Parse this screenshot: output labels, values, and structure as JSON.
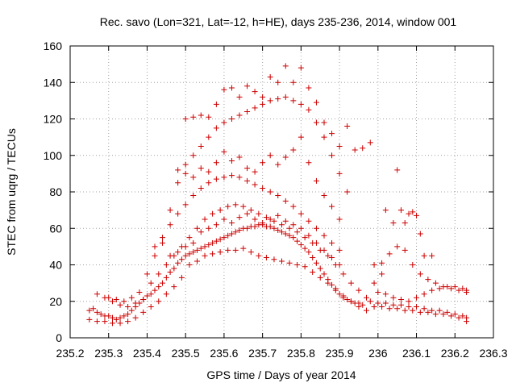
{
  "chart_data": {
    "type": "scatter",
    "title": "Rec. savo (Lon=321, Lat=-12, h=HE), days 235-236, 2014, window 001",
    "xlabel": "GPS time / Days of year 2014",
    "ylabel": "STEC from uqrg / TECUs",
    "xlim": [
      235.2,
      236.3
    ],
    "ylim": [
      0,
      160
    ],
    "xticks": [
      235.2,
      235.3,
      235.4,
      235.5,
      235.6,
      235.7,
      235.8,
      235.9,
      236.0,
      236.1,
      236.2,
      236.3
    ],
    "xtick_labels": [
      "235.2",
      "235.3",
      "235.4",
      "235.5",
      "235.6",
      "235.7",
      "235.8",
      "235.9",
      "236",
      "236.1",
      "236.2",
      "236.3"
    ],
    "yticks": [
      0,
      20,
      40,
      60,
      80,
      100,
      120,
      140,
      160
    ],
    "ytick_labels": [
      "0",
      "20",
      "40",
      "60",
      "80",
      "100",
      "120",
      "140",
      "160"
    ],
    "grid": true,
    "marker": "plus",
    "color": "#cc0000",
    "points": [
      [
        235.25,
        15
      ],
      [
        235.26,
        16
      ],
      [
        235.27,
        14
      ],
      [
        235.28,
        13
      ],
      [
        235.29,
        12
      ],
      [
        235.3,
        12
      ],
      [
        235.31,
        11
      ],
      [
        235.32,
        10
      ],
      [
        235.33,
        11
      ],
      [
        235.34,
        12
      ],
      [
        235.35,
        13
      ],
      [
        235.36,
        15
      ],
      [
        235.37,
        17
      ],
      [
        235.38,
        19
      ],
      [
        235.39,
        21
      ],
      [
        235.4,
        23
      ],
      [
        235.41,
        24
      ],
      [
        235.42,
        26
      ],
      [
        235.43,
        28
      ],
      [
        235.44,
        30
      ],
      [
        235.45,
        33
      ],
      [
        235.46,
        36
      ],
      [
        235.47,
        38
      ],
      [
        235.48,
        41
      ],
      [
        235.49,
        43
      ],
      [
        235.5,
        45
      ],
      [
        235.51,
        46
      ],
      [
        235.52,
        47
      ],
      [
        235.53,
        48
      ],
      [
        235.54,
        49
      ],
      [
        235.55,
        50
      ],
      [
        235.56,
        51
      ],
      [
        235.57,
        52
      ],
      [
        235.58,
        53
      ],
      [
        235.59,
        54
      ],
      [
        235.6,
        55
      ],
      [
        235.61,
        56
      ],
      [
        235.62,
        57
      ],
      [
        235.63,
        58
      ],
      [
        235.64,
        59
      ],
      [
        235.65,
        60
      ],
      [
        235.66,
        60
      ],
      [
        235.67,
        61
      ],
      [
        235.68,
        61
      ],
      [
        235.69,
        62
      ],
      [
        235.7,
        62
      ],
      [
        235.71,
        61
      ],
      [
        235.72,
        61
      ],
      [
        235.73,
        60
      ],
      [
        235.74,
        59
      ],
      [
        235.75,
        58
      ],
      [
        235.76,
        57
      ],
      [
        235.77,
        56
      ],
      [
        235.78,
        55
      ],
      [
        235.79,
        53
      ],
      [
        235.8,
        51
      ],
      [
        235.81,
        49
      ],
      [
        235.82,
        47
      ],
      [
        235.83,
        44
      ],
      [
        235.84,
        41
      ],
      [
        235.85,
        38
      ],
      [
        235.86,
        35
      ],
      [
        235.87,
        32
      ],
      [
        235.88,
        29
      ],
      [
        235.89,
        26
      ],
      [
        235.9,
        24
      ],
      [
        235.91,
        22
      ],
      [
        235.92,
        21
      ],
      [
        235.93,
        20
      ],
      [
        235.94,
        19
      ],
      [
        235.95,
        19
      ],
      [
        235.96,
        18
      ],
      [
        235.25,
        10
      ],
      [
        235.27,
        9
      ],
      [
        235.29,
        9
      ],
      [
        235.31,
        8
      ],
      [
        235.33,
        8
      ],
      [
        235.35,
        9
      ],
      [
        235.37,
        11
      ],
      [
        235.39,
        14
      ],
      [
        235.41,
        17
      ],
      [
        235.43,
        20
      ],
      [
        235.45,
        24
      ],
      [
        235.47,
        28
      ],
      [
        235.49,
        33
      ],
      [
        235.51,
        40
      ],
      [
        235.53,
        42
      ],
      [
        235.55,
        45
      ],
      [
        235.57,
        46
      ],
      [
        235.59,
        47
      ],
      [
        235.61,
        48
      ],
      [
        235.63,
        48
      ],
      [
        235.65,
        49
      ],
      [
        235.67,
        47
      ],
      [
        235.69,
        45
      ],
      [
        235.71,
        44
      ],
      [
        235.73,
        43
      ],
      [
        235.75,
        42
      ],
      [
        235.77,
        41
      ],
      [
        235.79,
        40
      ],
      [
        235.81,
        39
      ],
      [
        235.83,
        36
      ],
      [
        235.85,
        33
      ],
      [
        235.87,
        30
      ],
      [
        235.89,
        27
      ],
      [
        235.91,
        23
      ],
      [
        235.93,
        20
      ],
      [
        235.95,
        17
      ],
      [
        235.97,
        15
      ],
      [
        235.27,
        24
      ],
      [
        235.29,
        22
      ],
      [
        235.31,
        20
      ],
      [
        235.33,
        18
      ],
      [
        235.35,
        17
      ],
      [
        235.37,
        19
      ],
      [
        235.39,
        21
      ],
      [
        235.41,
        30
      ],
      [
        235.43,
        35
      ],
      [
        235.45,
        40
      ],
      [
        235.47,
        45
      ],
      [
        235.49,
        50
      ],
      [
        235.51,
        55
      ],
      [
        235.53,
        60
      ],
      [
        235.55,
        65
      ],
      [
        235.57,
        68
      ],
      [
        235.59,
        70
      ],
      [
        235.61,
        72
      ],
      [
        235.63,
        73
      ],
      [
        235.65,
        72
      ],
      [
        235.67,
        70
      ],
      [
        235.69,
        68
      ],
      [
        235.71,
        66
      ],
      [
        235.73,
        64
      ],
      [
        235.75,
        62
      ],
      [
        235.77,
        60
      ],
      [
        235.79,
        58
      ],
      [
        235.81,
        55
      ],
      [
        235.83,
        52
      ],
      [
        235.85,
        48
      ],
      [
        235.87,
        45
      ],
      [
        235.89,
        40
      ],
      [
        235.91,
        35
      ],
      [
        235.93,
        30
      ],
      [
        235.95,
        26
      ],
      [
        235.97,
        22
      ],
      [
        235.3,
        22
      ],
      [
        235.32,
        21
      ],
      [
        235.34,
        20
      ],
      [
        235.36,
        22
      ],
      [
        235.38,
        25
      ],
      [
        235.4,
        35
      ],
      [
        235.42,
        45
      ],
      [
        235.44,
        55
      ],
      [
        235.46,
        62
      ],
      [
        235.48,
        68
      ],
      [
        235.5,
        73
      ],
      [
        235.52,
        78
      ],
      [
        235.54,
        82
      ],
      [
        235.56,
        85
      ],
      [
        235.58,
        87
      ],
      [
        235.6,
        88
      ],
      [
        235.62,
        89
      ],
      [
        235.64,
        88
      ],
      [
        235.66,
        86
      ],
      [
        235.68,
        84
      ],
      [
        235.7,
        82
      ],
      [
        235.72,
        80
      ],
      [
        235.74,
        78
      ],
      [
        235.76,
        75
      ],
      [
        235.78,
        72
      ],
      [
        235.8,
        68
      ],
      [
        235.82,
        64
      ],
      [
        235.84,
        60
      ],
      [
        235.86,
        56
      ],
      [
        235.88,
        52
      ],
      [
        235.9,
        48
      ],
      [
        235.42,
        50
      ],
      [
        235.44,
        52
      ],
      [
        235.46,
        70
      ],
      [
        235.48,
        85
      ],
      [
        235.5,
        95
      ],
      [
        235.52,
        100
      ],
      [
        235.54,
        105
      ],
      [
        235.56,
        110
      ],
      [
        235.58,
        115
      ],
      [
        235.6,
        118
      ],
      [
        235.62,
        120
      ],
      [
        235.64,
        122
      ],
      [
        235.66,
        124
      ],
      [
        235.68,
        126
      ],
      [
        235.7,
        128
      ],
      [
        235.72,
        130
      ],
      [
        235.74,
        131
      ],
      [
        235.76,
        132
      ],
      [
        235.78,
        130
      ],
      [
        235.8,
        128
      ],
      [
        235.82,
        125
      ],
      [
        235.84,
        118
      ],
      [
        235.86,
        110
      ],
      [
        235.88,
        100
      ],
      [
        235.9,
        90
      ],
      [
        235.92,
        80
      ],
      [
        235.5,
        120
      ],
      [
        235.52,
        121
      ],
      [
        235.54,
        122
      ],
      [
        235.56,
        121
      ],
      [
        235.58,
        128
      ],
      [
        235.6,
        136
      ],
      [
        235.62,
        137
      ],
      [
        235.64,
        132
      ],
      [
        235.66,
        138
      ],
      [
        235.68,
        135
      ],
      [
        235.7,
        132
      ],
      [
        235.72,
        143
      ],
      [
        235.74,
        140
      ],
      [
        235.76,
        149
      ],
      [
        235.78,
        140
      ],
      [
        235.8,
        148
      ],
      [
        235.82,
        137
      ],
      [
        235.84,
        129
      ],
      [
        235.86,
        118
      ],
      [
        235.88,
        112
      ],
      [
        235.9,
        105
      ],
      [
        235.92,
        116
      ],
      [
        235.94,
        103
      ],
      [
        235.96,
        104
      ],
      [
        235.98,
        107
      ],
      [
        235.48,
        92
      ],
      [
        235.5,
        90
      ],
      [
        235.52,
        88
      ],
      [
        235.54,
        93
      ],
      [
        235.56,
        91
      ],
      [
        235.58,
        96
      ],
      [
        235.6,
        102
      ],
      [
        235.62,
        97
      ],
      [
        235.64,
        99
      ],
      [
        235.66,
        93
      ],
      [
        235.68,
        91
      ],
      [
        235.7,
        96
      ],
      [
        235.72,
        100
      ],
      [
        235.74,
        95
      ],
      [
        235.76,
        99
      ],
      [
        235.78,
        103
      ],
      [
        235.8,
        110
      ],
      [
        235.82,
        96
      ],
      [
        235.84,
        86
      ],
      [
        235.86,
        78
      ],
      [
        235.88,
        72
      ],
      [
        235.9,
        65
      ],
      [
        235.46,
        45
      ],
      [
        235.48,
        47
      ],
      [
        235.5,
        50
      ],
      [
        235.52,
        52
      ],
      [
        235.54,
        58
      ],
      [
        235.56,
        60
      ],
      [
        235.58,
        62
      ],
      [
        235.6,
        65
      ],
      [
        235.62,
        63
      ],
      [
        235.64,
        66
      ],
      [
        235.66,
        68
      ],
      [
        235.68,
        65
      ],
      [
        235.7,
        63
      ],
      [
        235.72,
        65
      ],
      [
        235.74,
        67
      ],
      [
        235.76,
        64
      ],
      [
        235.78,
        62
      ],
      [
        235.8,
        60
      ],
      [
        235.82,
        56
      ],
      [
        235.84,
        52
      ],
      [
        235.86,
        48
      ],
      [
        235.88,
        44
      ],
      [
        235.9,
        40
      ],
      [
        235.99,
        40
      ],
      [
        236.01,
        41
      ],
      [
        236.02,
        70
      ],
      [
        236.04,
        63
      ],
      [
        236.05,
        92
      ],
      [
        236.06,
        70
      ],
      [
        236.07,
        63
      ],
      [
        236.08,
        68
      ],
      [
        236.09,
        69
      ],
      [
        236.1,
        67
      ],
      [
        236.11,
        57
      ],
      [
        236.12,
        45
      ],
      [
        236.14,
        45
      ],
      [
        235.99,
        30
      ],
      [
        236.01,
        35
      ],
      [
        236.03,
        46
      ],
      [
        236.05,
        50
      ],
      [
        236.07,
        48
      ],
      [
        236.09,
        40
      ],
      [
        236.11,
        35
      ],
      [
        236.13,
        32
      ],
      [
        236.15,
        30
      ],
      [
        236.17,
        28
      ],
      [
        236.19,
        27
      ],
      [
        236.21,
        26
      ],
      [
        236.23,
        25
      ],
      [
        235.98,
        20
      ],
      [
        236.0,
        19
      ],
      [
        236.02,
        19
      ],
      [
        236.04,
        18
      ],
      [
        236.06,
        18
      ],
      [
        236.08,
        17
      ],
      [
        236.1,
        17
      ],
      [
        236.12,
        16
      ],
      [
        236.14,
        15
      ],
      [
        236.16,
        15
      ],
      [
        236.18,
        14
      ],
      [
        236.2,
        13
      ],
      [
        236.22,
        12
      ],
      [
        236.23,
        11
      ],
      [
        235.99,
        17
      ],
      [
        236.01,
        17
      ],
      [
        236.03,
        16
      ],
      [
        236.05,
        16
      ],
      [
        236.07,
        15
      ],
      [
        236.09,
        15
      ],
      [
        236.11,
        14
      ],
      [
        236.13,
        14
      ],
      [
        236.15,
        13
      ],
      [
        236.17,
        13
      ],
      [
        236.19,
        12
      ],
      [
        236.21,
        11
      ],
      [
        236.23,
        9
      ],
      [
        236.0,
        25
      ],
      [
        236.02,
        24
      ],
      [
        236.04,
        22
      ],
      [
        236.06,
        21
      ],
      [
        236.08,
        20
      ],
      [
        236.1,
        22
      ],
      [
        236.12,
        24
      ],
      [
        236.14,
        26
      ],
      [
        236.16,
        27
      ],
      [
        236.18,
        28
      ],
      [
        236.2,
        28
      ],
      [
        236.22,
        27
      ],
      [
        236.23,
        26
      ]
    ]
  }
}
